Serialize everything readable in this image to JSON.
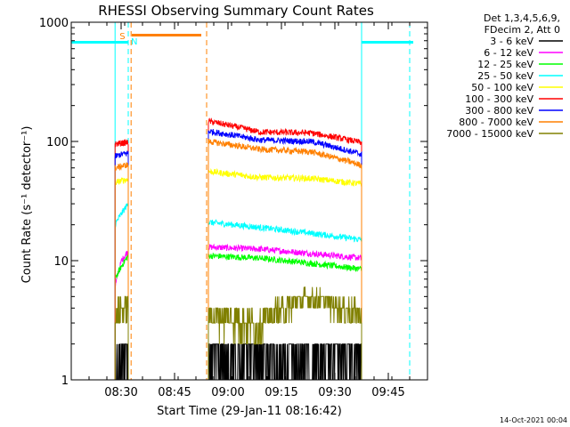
{
  "chart_data": {
    "type": "line",
    "title": "RHESSI Observing Summary Count Rates",
    "xlabel": "Start Time (29-Jan-11 08:16:42)",
    "ylabel": "Count Rate (s⁻¹ detector⁻¹)",
    "y_scale": "log",
    "ylim": [
      1,
      1000
    ],
    "xlim_minutes_from_0816": [
      0,
      100
    ],
    "x_tick_labels": [
      "08:30",
      "08:45",
      "09:00",
      "09:15",
      "09:30",
      "09:45"
    ],
    "x_tick_minutes": [
      14,
      29,
      44,
      59,
      74,
      89
    ],
    "y_tick_labels": [
      "1",
      "10",
      "100",
      "1000"
    ],
    "y_tick_values": [
      1,
      10,
      100,
      1000
    ],
    "legend_header": [
      "Det 1,3,4,5,6,9,",
      "FDecim 2, Att 0"
    ],
    "footer_timestamp": "14-Oct-2021 00:04",
    "flag_labels": {
      "saa": "S",
      "night": "N"
    },
    "segments_minutes": [
      [
        12.3,
        16.0
      ],
      [
        38.5,
        81.5
      ]
    ],
    "series": [
      {
        "name": "3 - 6 keV",
        "color": "#000000",
        "seg1": [
          1,
          1,
          1
        ],
        "seg2": [
          1.6,
          1.7,
          1.7,
          1.6
        ]
      },
      {
        "name": "6 - 12 keV",
        "color": "#ff00ff",
        "seg1": [
          6,
          10,
          12
        ],
        "seg2": [
          13,
          12.5,
          11.5,
          10.5
        ]
      },
      {
        "name": "12 - 25 keV",
        "color": "#00ff00",
        "seg1": [
          7,
          9,
          11
        ],
        "seg2": [
          11,
          10.5,
          9.5,
          8.5
        ]
      },
      {
        "name": "25 - 50 keV",
        "color": "#00ffff",
        "seg1": [
          20,
          25,
          30
        ],
        "seg2": [
          21,
          19,
          17,
          15
        ]
      },
      {
        "name": "50 - 100 keV",
        "color": "#ffff00",
        "seg1": [
          45,
          47,
          48
        ],
        "seg2": [
          56,
          50,
          49,
          44
        ]
      },
      {
        "name": "100 - 300 keV",
        "color": "#ff0000",
        "seg1": [
          95,
          97,
          98
        ],
        "seg2": [
          148,
          120,
          118,
          98
        ]
      },
      {
        "name": "300 - 800 keV",
        "color": "#0000ff",
        "seg1": [
          75,
          78,
          80
        ],
        "seg2": [
          122,
          103,
          100,
          78
        ]
      },
      {
        "name": "800 - 7000 keV",
        "color": "#ff8000",
        "seg1": [
          60,
          62,
          64
        ],
        "seg2": [
          100,
          86,
          82,
          63
        ]
      },
      {
        "name": "7000 - 15000 keV",
        "color": "#808000",
        "seg1": [
          3.5,
          4,
          4
        ],
        "seg2": [
          3.5,
          3,
          5,
          3.5
        ]
      }
    ],
    "cyan_bars_minutes": [
      [
        0,
        16.0
      ],
      [
        81.5,
        96
      ]
    ],
    "cyan_bar_value": 680,
    "orange_bar_minutes": [
      17.0,
      36.5
    ],
    "orange_bar_value": 780,
    "cyan_solid_lines_minutes": [
      12.3,
      81.5
    ],
    "cyan_dashed_lines_minutes": [
      16.0,
      95.0
    ],
    "orange_dashed_lines_minutes": [
      16.8,
      38.0
    ]
  }
}
